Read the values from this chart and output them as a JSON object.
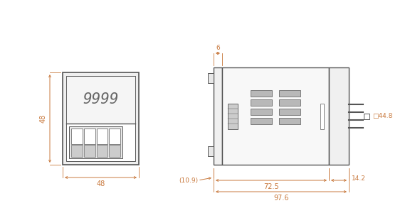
{
  "bg_color": "#ffffff",
  "line_color": "#555555",
  "dim_color": "#c8783c",
  "fig_width": 5.83,
  "fig_height": 3.0,
  "dpi": 100
}
